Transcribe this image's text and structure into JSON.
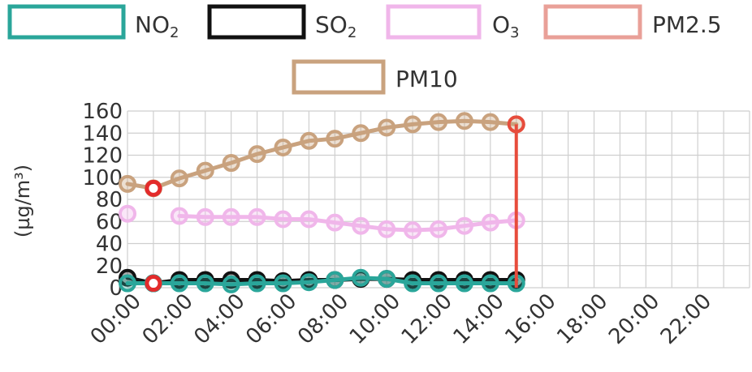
{
  "chart_data": {
    "type": "line",
    "ylabel": "(µg/m³)",
    "ylim": [
      0,
      160
    ],
    "yticks": [
      0,
      20,
      40,
      60,
      80,
      100,
      120,
      140,
      160
    ],
    "categories": [
      "00:00",
      "01:00",
      "02:00",
      "03:00",
      "04:00",
      "05:00",
      "06:00",
      "07:00",
      "08:00",
      "09:00",
      "10:00",
      "11:00",
      "12:00",
      "13:00",
      "14:00",
      "15:00",
      "16:00",
      "17:00",
      "18:00",
      "19:00",
      "20:00",
      "21:00",
      "22:00",
      "23:00"
    ],
    "xtick_labels": [
      "00:00",
      "02:00",
      "04:00",
      "06:00",
      "08:00",
      "10:00",
      "12:00",
      "14:00",
      "16:00",
      "18:00",
      "20:00",
      "22:00"
    ],
    "grid": true,
    "legend_position": "top",
    "series": [
      {
        "name": "NO2",
        "color": "#2aa69a",
        "values": [
          4,
          4,
          4,
          4,
          3,
          4,
          4,
          5,
          7,
          9,
          8,
          4,
          4,
          4,
          4,
          4,
          null,
          null,
          null,
          null,
          null,
          null,
          null,
          null
        ]
      },
      {
        "name": "SO2",
        "color": "#111111",
        "values": [
          9,
          4,
          7,
          7,
          7,
          7,
          6,
          7,
          7,
          8,
          8,
          7,
          7,
          7,
          7,
          7,
          null,
          null,
          null,
          null,
          null,
          null,
          null,
          null
        ]
      },
      {
        "name": "O3",
        "color": "#f0b6ea",
        "values": [
          67,
          null,
          65,
          64,
          64,
          64,
          62,
          62,
          59,
          56,
          53,
          52,
          53,
          56,
          59,
          61,
          null,
          null,
          null,
          null,
          null,
          null,
          null,
          null
        ]
      },
      {
        "name": "PM2.5",
        "color": "#e74c3c",
        "values": [
          null,
          null,
          null,
          null,
          null,
          null,
          null,
          null,
          null,
          null,
          null,
          null,
          null,
          null,
          null,
          148,
          null,
          null,
          null,
          null,
          null,
          null,
          null,
          null
        ]
      },
      {
        "name": "PM10",
        "color": "#c9a27e",
        "values": [
          94,
          90,
          99,
          106,
          113,
          121,
          127,
          133,
          135,
          140,
          145,
          148,
          150,
          151,
          150,
          148,
          null,
          null,
          null,
          null,
          null,
          null,
          null,
          null
        ]
      }
    ],
    "legend": {
      "row1": [
        {
          "label": "NO",
          "sub": "2",
          "color": "#2aa69a"
        },
        {
          "label": "SO",
          "sub": "2",
          "color": "#111111"
        },
        {
          "label": "O",
          "sub": "3",
          "color": "#f0b6ea"
        },
        {
          "label": "PM2.5",
          "sub": "",
          "color": "#e9a098"
        }
      ],
      "row2": [
        {
          "label": "PM10",
          "sub": "",
          "color": "#c9a27e"
        }
      ]
    }
  }
}
